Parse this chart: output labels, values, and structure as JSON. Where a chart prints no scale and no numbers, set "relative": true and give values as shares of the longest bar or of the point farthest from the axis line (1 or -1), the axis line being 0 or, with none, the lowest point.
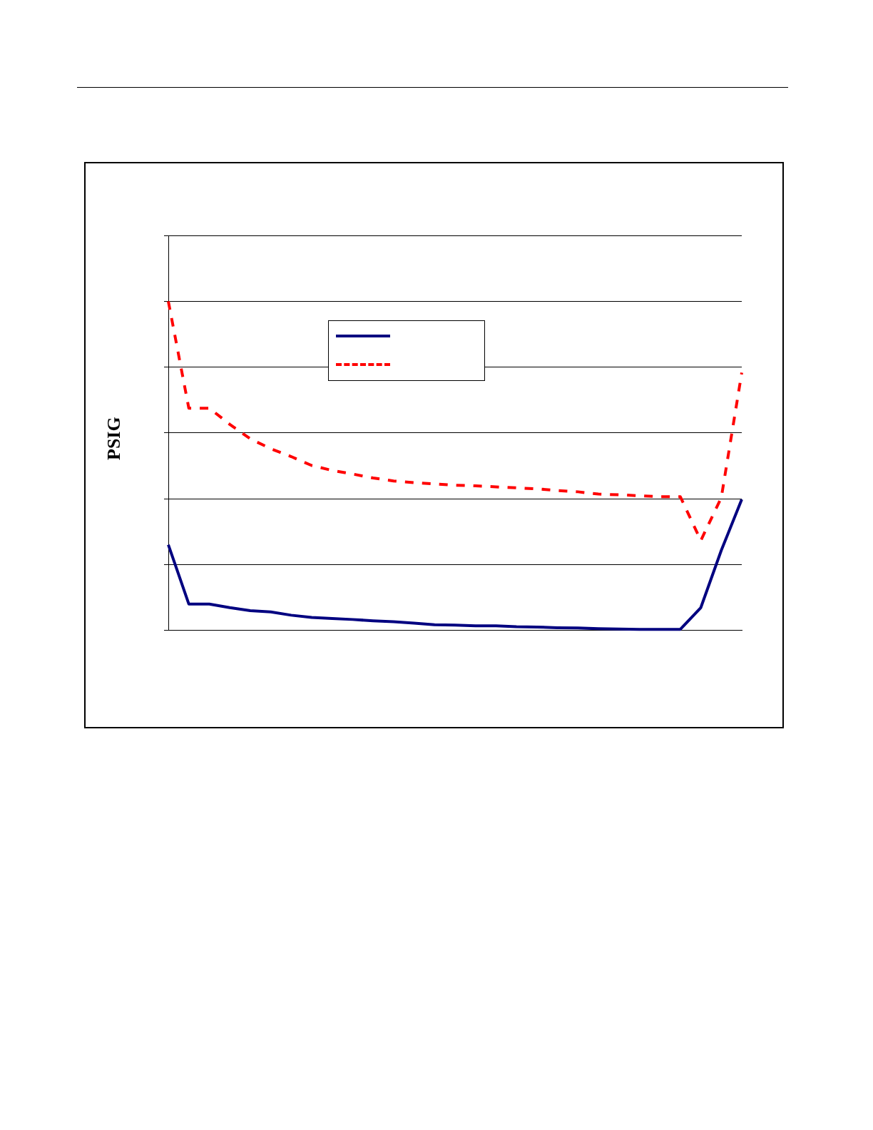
{
  "chart_data": {
    "type": "line",
    "ylabel": "PSIG",
    "relative": true,
    "grid": "y",
    "marker": "none",
    "categories": [
      null,
      null,
      null,
      null,
      null,
      null,
      null,
      null,
      null,
      null,
      null,
      null,
      null,
      null,
      null,
      null,
      null,
      null,
      null,
      null,
      null,
      null,
      null,
      null,
      null,
      null,
      null,
      null,
      null
    ],
    "series": [
      {
        "color": "#000080",
        "line_style": "solid",
        "values": [
          0.26,
          0.08,
          0.08,
          0.069,
          0.06,
          0.056,
          0.046,
          0.039,
          0.036,
          0.033,
          0.029,
          0.026,
          0.022,
          0.017,
          0.016,
          0.014,
          0.014,
          0.011,
          0.01,
          0.008,
          0.007,
          0.005,
          0.004,
          0.003,
          0.003,
          0.003,
          0.069,
          0.243,
          0.398
        ]
      },
      {
        "color": "#ff0000",
        "line_style": "dashed",
        "values": [
          1,
          0.675,
          0.675,
          0.626,
          0.582,
          0.552,
          0.528,
          0.501,
          0.486,
          0.475,
          0.463,
          0.454,
          0.449,
          0.445,
          0.441,
          0.439,
          0.436,
          0.433,
          0.43,
          0.425,
          0.421,
          0.414,
          0.412,
          0.409,
          0.406,
          0.406,
          0.273,
          0.403,
          0.783
        ]
      }
    ]
  }
}
